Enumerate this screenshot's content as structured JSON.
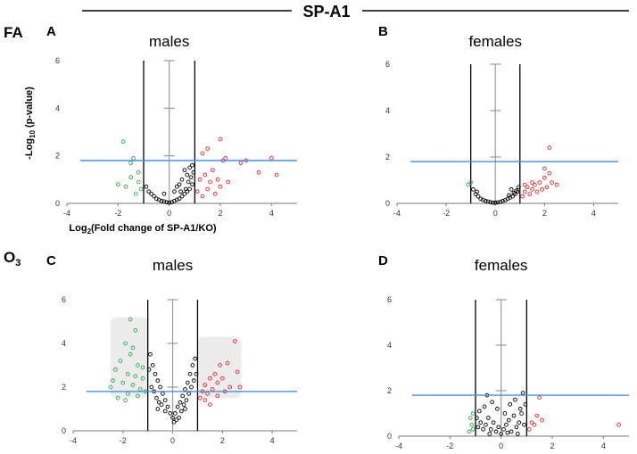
{
  "figure": {
    "title": "SP-A1",
    "row_labels": {
      "fa": "FA",
      "o3_base": "O",
      "o3_sub": "3"
    },
    "colors": {
      "up": "#e8232a",
      "down": "#2ea84f",
      "ns": "#000000",
      "threshold": "#4a90d9",
      "zero": "#9a9a9a",
      "shade": "#ececec"
    }
  },
  "chart_data": [
    {
      "panel": "A",
      "sex": "males",
      "type": "scatter",
      "title": "males",
      "ylabel_base": "-Log",
      "ylabel_sub": "10",
      "ylabel_rest": " (p-value)",
      "xlabel_base": "Log",
      "xlabel_sub": "2",
      "xlabel_rest": "(Fold change of SP-A1/KO)",
      "xlim": [
        -4,
        5
      ],
      "ylim": [
        0,
        6
      ],
      "xticks": [
        "-4",
        "-2",
        "0",
        "2",
        "4"
      ],
      "yticks": [
        "0",
        "2",
        "4",
        "6"
      ],
      "fold_lines": [
        -1,
        1
      ],
      "p_threshold": 1.8,
      "shaded": false,
      "up_points": [
        [
          1.1,
          0.5
        ],
        [
          1.2,
          1.0
        ],
        [
          1.3,
          0.3
        ],
        [
          1.4,
          1.2
        ],
        [
          1.5,
          0.6
        ],
        [
          1.6,
          0.9
        ],
        [
          1.7,
          1.4
        ],
        [
          1.8,
          0.4
        ],
        [
          1.9,
          1.0
        ],
        [
          2.0,
          0.7
        ],
        [
          2.1,
          1.8
        ],
        [
          2.2,
          1.9
        ],
        [
          2.3,
          0.9
        ],
        [
          2.0,
          2.7
        ],
        [
          1.5,
          2.3
        ],
        [
          1.3,
          2.1
        ],
        [
          2.8,
          1.7
        ],
        [
          3.0,
          1.8
        ],
        [
          3.5,
          1.3
        ],
        [
          4.0,
          1.9
        ],
        [
          4.2,
          1.2
        ]
      ],
      "down_points": [
        [
          -1.1,
          0.6
        ],
        [
          -1.2,
          0.9
        ],
        [
          -1.3,
          0.4
        ],
        [
          -1.5,
          1.1
        ],
        [
          -1.7,
          0.7
        ],
        [
          -2.0,
          0.8
        ],
        [
          -1.4,
          1.9
        ],
        [
          -1.5,
          1.7
        ],
        [
          -1.2,
          1.3
        ],
        [
          -1.8,
          2.6
        ]
      ],
      "ns_points": [
        [
          -0.8,
          0.5
        ],
        [
          -0.6,
          0.3
        ],
        [
          -0.5,
          0.2
        ],
        [
          -0.4,
          0.15
        ],
        [
          -0.3,
          0.1
        ],
        [
          -0.2,
          0.08
        ],
        [
          -0.1,
          0.05
        ],
        [
          0.0,
          0.03
        ],
        [
          0.1,
          0.05
        ],
        [
          0.2,
          0.1
        ],
        [
          0.3,
          0.15
        ],
        [
          0.4,
          0.2
        ],
        [
          0.5,
          0.3
        ],
        [
          0.6,
          0.4
        ],
        [
          0.7,
          0.5
        ],
        [
          0.8,
          0.6
        ],
        [
          0.9,
          0.8
        ],
        [
          -0.9,
          0.7
        ],
        [
          -0.7,
          0.4
        ],
        [
          0.5,
          1.0
        ],
        [
          0.7,
          1.2
        ],
        [
          0.8,
          1.5
        ],
        [
          0.9,
          1.6
        ],
        [
          0.6,
          1.4
        ],
        [
          0.4,
          0.8
        ],
        [
          0.2,
          0.5
        ],
        [
          -0.2,
          0.4
        ],
        [
          0.3,
          0.7
        ],
        [
          0.75,
          0.9
        ],
        [
          0.85,
          1.1
        ],
        [
          0.65,
          0.6
        ],
        [
          0.45,
          0.5
        ],
        [
          0.95,
          1.3
        ]
      ]
    },
    {
      "panel": "B",
      "sex": "females",
      "type": "scatter",
      "title": "females",
      "xlim": [
        -4,
        5
      ],
      "ylim": [
        0,
        6
      ],
      "xticks": [
        "-4",
        "-2",
        "0",
        "2",
        "4"
      ],
      "yticks": [
        "0",
        "2",
        "4",
        "6"
      ],
      "fold_lines": [
        -1,
        1
      ],
      "p_threshold": 1.8,
      "shaded": false,
      "up_points": [
        [
          1.1,
          0.3
        ],
        [
          1.2,
          0.5
        ],
        [
          1.3,
          0.7
        ],
        [
          1.4,
          0.4
        ],
        [
          1.5,
          0.6
        ],
        [
          1.6,
          0.8
        ],
        [
          1.7,
          0.5
        ],
        [
          1.8,
          0.9
        ],
        [
          1.9,
          0.6
        ],
        [
          2.0,
          1.1
        ],
        [
          2.1,
          0.7
        ],
        [
          2.2,
          1.3
        ],
        [
          2.3,
          0.9
        ],
        [
          2.0,
          1.5
        ],
        [
          2.2,
          2.4
        ],
        [
          1.5,
          0.9
        ],
        [
          2.5,
          0.8
        ],
        [
          1.2,
          0.8
        ]
      ],
      "down_points": [
        [
          -1.1,
          0.8
        ],
        [
          -1.0,
          0.9
        ]
      ],
      "ns_points": [
        [
          -0.9,
          0.6
        ],
        [
          -0.8,
          0.4
        ],
        [
          -0.7,
          0.3
        ],
        [
          -0.6,
          0.2
        ],
        [
          -0.5,
          0.15
        ],
        [
          -0.4,
          0.1
        ],
        [
          -0.3,
          0.08
        ],
        [
          -0.2,
          0.05
        ],
        [
          -0.1,
          0.03
        ],
        [
          0.0,
          0.03
        ],
        [
          0.1,
          0.04
        ],
        [
          0.2,
          0.06
        ],
        [
          0.3,
          0.1
        ],
        [
          0.4,
          0.14
        ],
        [
          0.5,
          0.2
        ],
        [
          0.6,
          0.25
        ],
        [
          0.7,
          0.3
        ],
        [
          0.8,
          0.4
        ],
        [
          0.9,
          0.5
        ],
        [
          0.55,
          0.35
        ],
        [
          0.75,
          0.45
        ],
        [
          0.85,
          0.55
        ],
        [
          0.65,
          0.6
        ],
        [
          0.95,
          0.7
        ],
        [
          -0.75,
          0.5
        ]
      ]
    },
    {
      "panel": "C",
      "sex": "males",
      "type": "scatter",
      "title": "males",
      "xlim": [
        -4,
        5
      ],
      "ylim": [
        0,
        6
      ],
      "xticks": [
        "-4",
        "-2",
        "0",
        "2",
        "4"
      ],
      "yticks": [
        "0",
        "2",
        "4",
        "6"
      ],
      "fold_lines": [
        -1,
        1
      ],
      "p_threshold": 1.8,
      "shaded": true,
      "up_points": [
        [
          1.1,
          1.5
        ],
        [
          1.2,
          1.8
        ],
        [
          1.3,
          2.1
        ],
        [
          1.4,
          1.7
        ],
        [
          1.5,
          2.4
        ],
        [
          1.6,
          1.9
        ],
        [
          1.7,
          2.6
        ],
        [
          1.8,
          2.2
        ],
        [
          1.9,
          3.0
        ],
        [
          2.0,
          2.4
        ],
        [
          2.2,
          3.1
        ],
        [
          2.3,
          2.0
        ],
        [
          2.5,
          4.1
        ],
        [
          2.6,
          2.7
        ],
        [
          1.3,
          1.4
        ],
        [
          1.5,
          1.2
        ],
        [
          1.8,
          1.6
        ],
        [
          2.1,
          1.8
        ],
        [
          2.7,
          2.0
        ]
      ],
      "down_points": [
        [
          -1.1,
          1.8
        ],
        [
          -1.2,
          2.4
        ],
        [
          -1.3,
          1.9
        ],
        [
          -1.4,
          3.0
        ],
        [
          -1.5,
          2.5
        ],
        [
          -1.6,
          2.1
        ],
        [
          -1.7,
          3.5
        ],
        [
          -1.8,
          2.6
        ],
        [
          -1.9,
          4.0
        ],
        [
          -2.0,
          2.2
        ],
        [
          -2.1,
          3.2
        ],
        [
          -2.2,
          1.5
        ],
        [
          -2.3,
          2.8
        ],
        [
          -1.5,
          4.6
        ],
        [
          -1.7,
          5.1
        ],
        [
          -1.8,
          1.7
        ],
        [
          -2.5,
          2.0
        ],
        [
          -1.2,
          2.9
        ],
        [
          -1.4,
          1.6
        ],
        [
          -1.6,
          3.8
        ],
        [
          -1.9,
          1.4
        ],
        [
          -2.4,
          2.3
        ]
      ],
      "ns_points": [
        [
          -0.9,
          3.5
        ],
        [
          -0.8,
          3.0
        ],
        [
          -0.7,
          2.6
        ],
        [
          -0.6,
          2.3
        ],
        [
          -0.5,
          2.0
        ],
        [
          -0.4,
          1.7
        ],
        [
          -0.3,
          1.4
        ],
        [
          -0.2,
          1.1
        ],
        [
          -0.1,
          0.8
        ],
        [
          0.0,
          0.6
        ],
        [
          0.1,
          0.8
        ],
        [
          0.2,
          1.1
        ],
        [
          0.3,
          1.3
        ],
        [
          0.4,
          1.6
        ],
        [
          0.5,
          1.9
        ],
        [
          0.6,
          2.2
        ],
        [
          0.7,
          2.6
        ],
        [
          0.8,
          3.0
        ],
        [
          0.9,
          3.3
        ],
        [
          -0.85,
          2.0
        ],
        [
          -0.75,
          1.8
        ],
        [
          -0.65,
          1.5
        ],
        [
          -0.55,
          1.3
        ],
        [
          -0.45,
          1.2
        ],
        [
          0.15,
          0.5
        ],
        [
          0.25,
          0.6
        ],
        [
          0.35,
          0.9
        ],
        [
          0.45,
          1.2
        ],
        [
          0.55,
          1.4
        ],
        [
          0.65,
          1.7
        ],
        [
          0.75,
          2.0
        ],
        [
          0.85,
          2.3
        ],
        [
          -0.95,
          2.8
        ],
        [
          -0.3,
          0.9
        ],
        [
          0.05,
          0.4
        ],
        [
          0.95,
          2.6
        ],
        [
          -0.6,
          1.0
        ],
        [
          0.5,
          1.0
        ]
      ]
    },
    {
      "panel": "D",
      "sex": "females",
      "type": "scatter",
      "title": "females",
      "xlim": [
        -4,
        5
      ],
      "ylim": [
        0,
        6
      ],
      "xticks": [
        "-4",
        "-2",
        "0",
        "2",
        "4"
      ],
      "yticks": [
        "0",
        "2",
        "4",
        "6"
      ],
      "fold_lines": [
        -1,
        1
      ],
      "p_threshold": 1.8,
      "shaded": false,
      "up_points": [
        [
          1.1,
          0.3
        ],
        [
          1.2,
          0.6
        ],
        [
          1.3,
          0.5
        ],
        [
          1.4,
          0.9
        ],
        [
          1.5,
          1.7
        ],
        [
          1.6,
          0.7
        ],
        [
          4.6,
          0.5
        ]
      ],
      "down_points": [
        [
          -1.1,
          0.3
        ],
        [
          -1.15,
          0.5
        ],
        [
          -1.2,
          0.8
        ],
        [
          -1.1,
          1.0
        ],
        [
          -1.25,
          0.2
        ]
      ],
      "ns_points": [
        [
          -0.9,
          0.4
        ],
        [
          -0.8,
          0.6
        ],
        [
          -0.7,
          0.3
        ],
        [
          -0.6,
          0.5
        ],
        [
          -0.5,
          0.8
        ],
        [
          -0.4,
          0.3
        ],
        [
          -0.3,
          0.6
        ],
        [
          -0.2,
          0.2
        ],
        [
          -0.1,
          0.4
        ],
        [
          0.0,
          0.1
        ],
        [
          0.1,
          0.3
        ],
        [
          0.2,
          0.5
        ],
        [
          0.3,
          0.7
        ],
        [
          0.4,
          0.2
        ],
        [
          0.5,
          0.9
        ],
        [
          0.6,
          0.4
        ],
        [
          0.7,
          0.6
        ],
        [
          0.8,
          1.0
        ],
        [
          0.9,
          0.5
        ],
        [
          -0.85,
          1.1
        ],
        [
          -0.65,
          1.3
        ],
        [
          -0.35,
          1.5
        ],
        [
          -0.15,
          1.2
        ],
        [
          0.15,
          1.0
        ],
        [
          0.35,
          1.4
        ],
        [
          0.55,
          1.6
        ],
        [
          0.75,
          1.2
        ],
        [
          0.85,
          1.9
        ],
        [
          -0.55,
          1.8
        ],
        [
          -0.95,
          0.8
        ],
        [
          0.95,
          1.4
        ],
        [
          -0.45,
          0.1
        ],
        [
          0.25,
          0.15
        ],
        [
          0.65,
          0.1
        ]
      ]
    }
  ]
}
